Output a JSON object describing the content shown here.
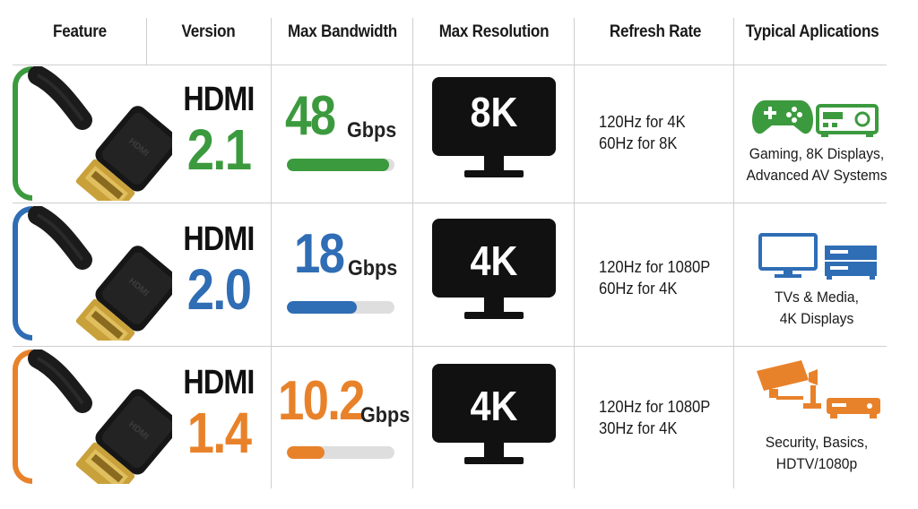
{
  "header": {
    "feature": "Feature",
    "version": "Version",
    "max_bandwidth": "Max Bandwidth",
    "max_resolution": "Max Resolution",
    "refresh_rate": "Refresh Rate",
    "typical_applications": "Typical Aplications"
  },
  "rows": [
    {
      "hdmi_label": "HDMI",
      "version": "2.1",
      "color": "#3c9a3e",
      "bandwidth_value": "48",
      "bandwidth_unit": "Gbps",
      "bandwidth_fill_fraction": 0.95,
      "resolution": "8K",
      "refresh_line1": "120Hz for 4K",
      "refresh_line2": "60Hz for 8K",
      "apps_line1": "Gaming, 8K Displays,",
      "apps_line2": "Advanced AV Systems",
      "icons": [
        "gamepad-icon",
        "av-receiver-icon"
      ]
    },
    {
      "hdmi_label": "HDMI",
      "version": "2.0",
      "color": "#2f6db5",
      "bandwidth_value": "18",
      "bandwidth_unit": "Gbps",
      "bandwidth_fill_fraction": 0.65,
      "resolution": "4K",
      "refresh_line1": "120Hz for 1080P",
      "refresh_line2": "60Hz for 4K",
      "apps_line1": "TVs & Media,",
      "apps_line2": "4K Displays",
      "icons": [
        "tv-icon",
        "media-player-icon"
      ]
    },
    {
      "hdmi_label": "HDMI",
      "version": "1.4",
      "color": "#e8822a",
      "bandwidth_value": "10.2",
      "bandwidth_unit": "Gbps",
      "bandwidth_fill_fraction": 0.35,
      "resolution": "4K",
      "refresh_line1": "120Hz for 1080P",
      "refresh_line2": "30Hz for 4K",
      "apps_line1": "Security, Basics,",
      "apps_line2": "HDTV/1080p",
      "icons": [
        "security-camera-icon",
        "set-top-box-icon"
      ]
    }
  ]
}
